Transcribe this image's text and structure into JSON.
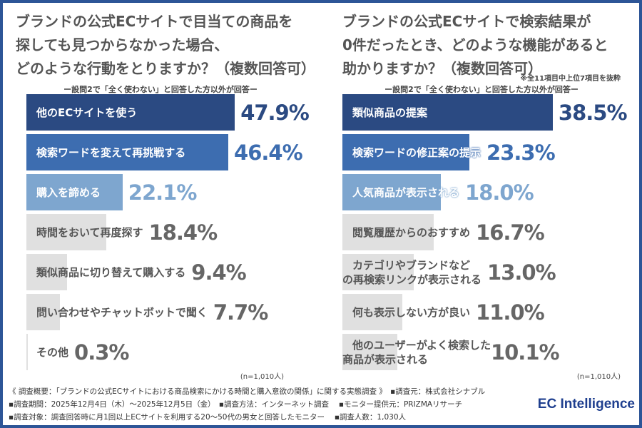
{
  "chart_data": [
    {
      "type": "bar",
      "orientation": "horizontal",
      "title": "ブランドの公式ECサイトで目当ての商品を\n探しても見つからなかった場合、\nどのような行動をとりますか？（複数回答可）",
      "subtitle": "ー設問2で「全く使わない」と回答した方以外が回答ー",
      "note": "",
      "n_label": "(n=1,010人)",
      "categories": [
        "他のECサイトを使う",
        "検索ワードを変えて再挑戦する",
        "購入を諦める",
        "時間をおいて再度探す",
        "類似商品に切り替えて購入する",
        "問い合わせやチャットボットで聞く",
        "その他"
      ],
      "values": [
        47.9,
        46.4,
        22.1,
        18.4,
        9.4,
        7.7,
        0.3
      ],
      "labels": [
        "47.9%",
        "46.4%",
        "22.1%",
        "18.4%",
        "9.4%",
        "7.7%",
        "0.3%"
      ],
      "colors": [
        "#2b4a82",
        "#3d6db0",
        "#7ea6cf",
        "#e0e0e0",
        "#e0e0e0",
        "#e0e0e0",
        "#e0e0e0"
      ],
      "value_colors": [
        "#2b4a82",
        "#3d6db0",
        "#7ea6cf",
        "#666666",
        "#666666",
        "#666666",
        "#666666"
      ]
    },
    {
      "type": "bar",
      "orientation": "horizontal",
      "title": "ブランドの公式ECサイトで検索結果が\n0件だったとき、どのような機能があると\n助かりますか？（複数回答可）",
      "subtitle": "ー設問2で「全く使わない」と回答した方以外が回答ー",
      "note": "※全11項目中上位7項目を抜粋",
      "n_label": "(n=1,010人)",
      "categories": [
        "類似商品の提案",
        "検索ワードの修正案の提示",
        "人気商品が表示される",
        "閲覧履歴からのおすすめ",
        "カテゴリやブランドなど\nの再検索リンクが表示される",
        "何も表示しない方が良い",
        "他のユーザーがよく検索した\n商品が表示される"
      ],
      "values": [
        38.5,
        23.3,
        18.0,
        16.7,
        13.0,
        11.0,
        10.1
      ],
      "labels": [
        "38.5%",
        "23.3%",
        "18.0%",
        "16.7%",
        "13.0%",
        "11.0%",
        "10.1%"
      ],
      "colors": [
        "#2b4a82",
        "#3d6db0",
        "#7ea6cf",
        "#e0e0e0",
        "#e0e0e0",
        "#e0e0e0",
        "#e0e0e0"
      ],
      "value_colors": [
        "#2b4a82",
        "#3d6db0",
        "#7ea6cf",
        "#666666",
        "#666666",
        "#666666",
        "#666666"
      ]
    }
  ],
  "footer": {
    "line1": "《 調査概要：「ブランドの公式ECサイトにおける商品検索にかける時間と購入意欲の関係」に関する実態調査 》　▪調査元：株式会社シナブル",
    "line2": "▪調査期間：2025年12月4日（木）～2025年12月5日（金）　▪調査方法：インターネット調査　 ▪モニター提供元：PRIZMAリサーチ",
    "line3": "▪調査対象：調査回答時に月1回以上ECサイトを利用する20～50代の男女と回答したモニター　 ▪調査人数：1,030人",
    "logo": "EC Intelligence"
  }
}
